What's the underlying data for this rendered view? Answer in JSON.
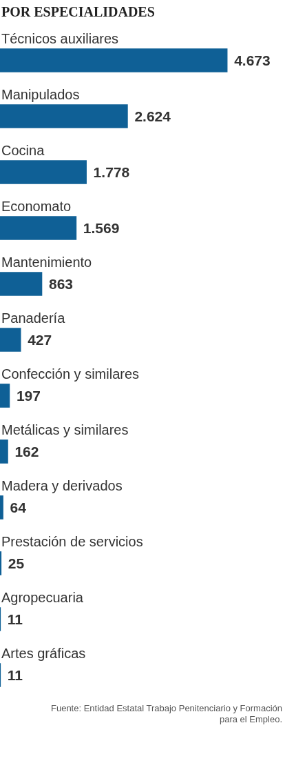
{
  "chart_data": {
    "type": "bar",
    "orientation": "horizontal",
    "title": "POR ESPECIALIDADES",
    "categories": [
      "Técnicos auxiliares",
      "Manipulados",
      "Cocina",
      "Economato",
      "Mantenimiento",
      "Panadería",
      "Confección y similares",
      "Metálicas y similares",
      "Madera y derivados",
      "Prestación de servicios",
      "Agropecuaria",
      "Artes gráficas"
    ],
    "values": [
      4673,
      2624,
      1778,
      1569,
      863,
      427,
      197,
      162,
      64,
      25,
      11,
      11
    ],
    "value_labels": [
      "4.673",
      "2.624",
      "1.778",
      "1.569",
      "863",
      "427",
      "197",
      "162",
      "64",
      "25",
      "11",
      "11"
    ],
    "color": "#0f6096",
    "xlim": [
      0,
      5860
    ],
    "annotations": [
      "Fuente: Entidad Estatal Trabajo Penitenciario y Formación para el Empleo."
    ]
  }
}
